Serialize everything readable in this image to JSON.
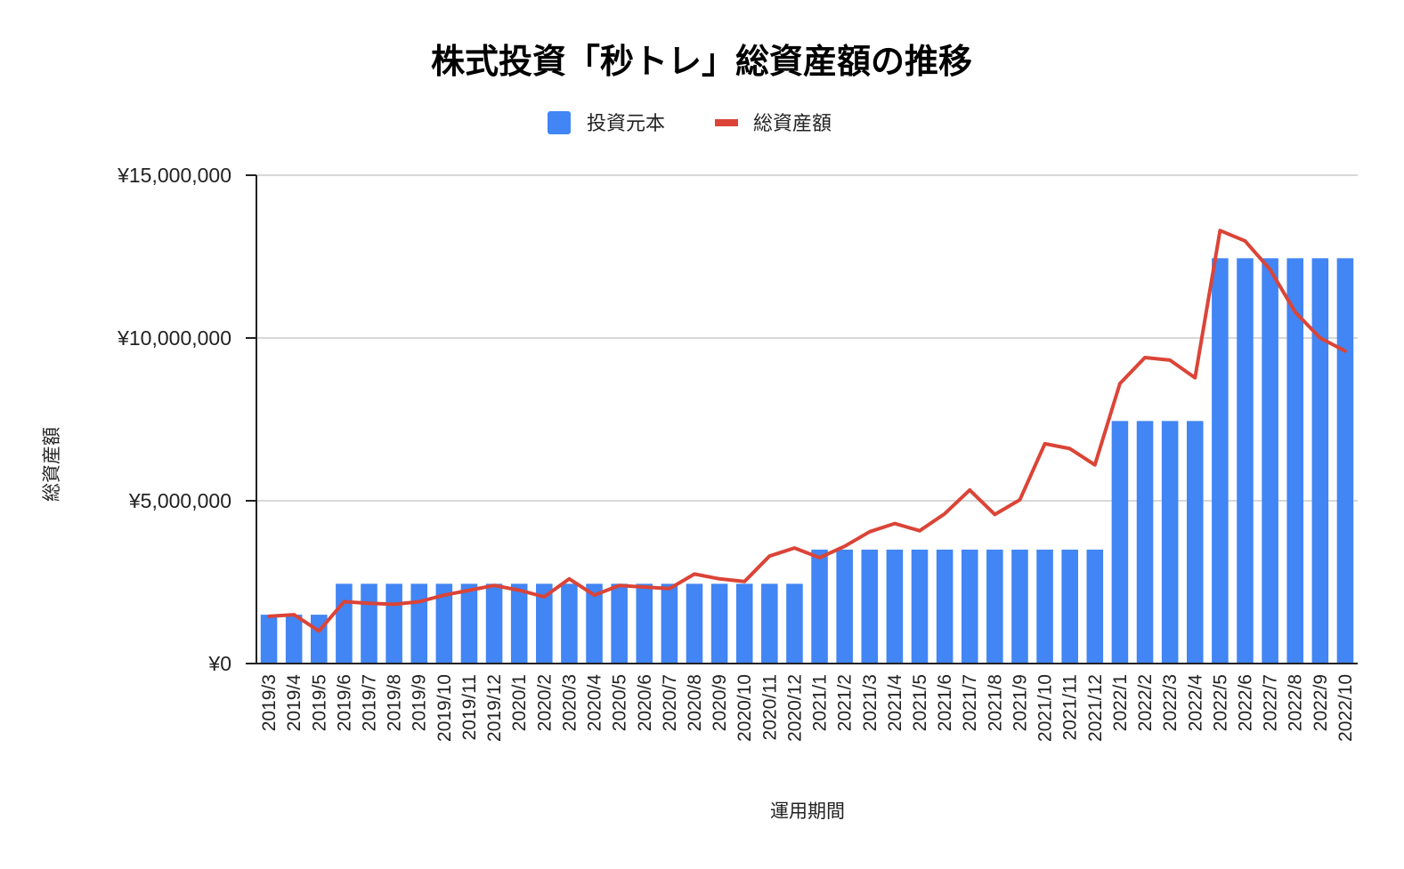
{
  "chart_data": {
    "type": "bar",
    "title": "株式投資「秒トレ」総資産額の推移",
    "xlabel": "運用期間",
    "ylabel": "総資産額",
    "ylim": [
      0,
      15000000
    ],
    "ytick_values": [
      0,
      5000000,
      10000000,
      15000000
    ],
    "ytick_labels": [
      "¥0",
      "¥5,000,000",
      "¥10,000,000",
      "¥15,000,000"
    ],
    "grid": true,
    "legend_position": "top-center",
    "categories": [
      "2019/3",
      "2019/4",
      "2019/5",
      "2019/6",
      "2019/7",
      "2019/8",
      "2019/9",
      "2019/10",
      "2019/11",
      "2019/12",
      "2020/1",
      "2020/2",
      "2020/3",
      "2020/4",
      "2020/5",
      "2020/6",
      "2020/7",
      "2020/8",
      "2020/9",
      "2020/10",
      "2020/11",
      "2020/12",
      "2021/1",
      "2021/2",
      "2021/3",
      "2021/4",
      "2021/5",
      "2021/6",
      "2021/7",
      "2021/8",
      "2021/9",
      "2021/10",
      "2021/11",
      "2021/12",
      "2022/1",
      "2022/2",
      "2022/3",
      "2022/4",
      "2022/5",
      "2022/6",
      "2022/7",
      "2022/8",
      "2022/9",
      "2022/10"
    ],
    "series": [
      {
        "name": "投資元本",
        "kind": "bar",
        "color": "#4285f4",
        "values": [
          1500000,
          1500000,
          1500000,
          2450000,
          2450000,
          2450000,
          2450000,
          2450000,
          2450000,
          2450000,
          2450000,
          2450000,
          2450000,
          2450000,
          2450000,
          2450000,
          2450000,
          2450000,
          2450000,
          2450000,
          2450000,
          2450000,
          3500000,
          3500000,
          3500000,
          3500000,
          3500000,
          3500000,
          3500000,
          3500000,
          3500000,
          3500000,
          3500000,
          3500000,
          7450000,
          7450000,
          7450000,
          7450000,
          12450000,
          12450000,
          12450000,
          12450000,
          12450000,
          12450000
        ]
      },
      {
        "name": "総資産額",
        "kind": "line",
        "color": "#db4437",
        "values": [
          1450000,
          1500000,
          1000000,
          1900000,
          1850000,
          1820000,
          1900000,
          2100000,
          2250000,
          2400000,
          2250000,
          2050000,
          2600000,
          2100000,
          2400000,
          2350000,
          2300000,
          2750000,
          2600000,
          2520000,
          3300000,
          3550000,
          3250000,
          3600000,
          4050000,
          4300000,
          4080000,
          4600000,
          5330000,
          4580000,
          5030000,
          6750000,
          6600000,
          6100000,
          8600000,
          9400000,
          9320000,
          8780000,
          13300000,
          12980000,
          12100000,
          10800000,
          10000000,
          9600000
        ]
      }
    ]
  }
}
